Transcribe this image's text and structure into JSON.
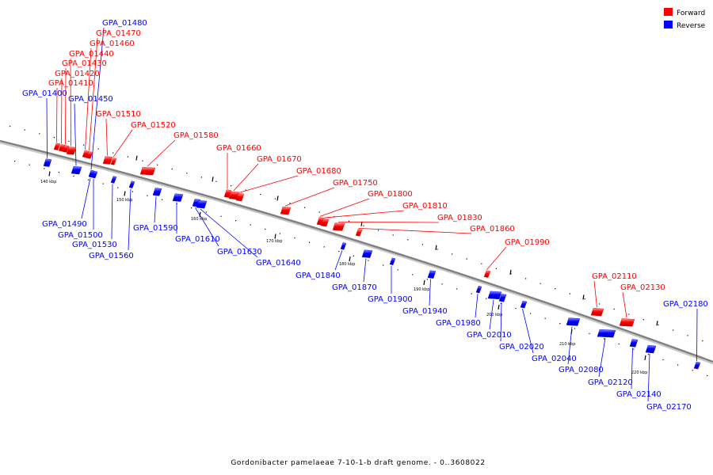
{
  "title": "Gordonibacter pamelaeae 7-10-1-b draft genome. - 0..3608022",
  "legend": [
    {
      "label": "Forward",
      "color": "#ff0000"
    },
    {
      "label": "Reverse",
      "color": "#0000ff"
    }
  ],
  "colors": {
    "forward": "#ff0000",
    "reverse": "#0000ff",
    "axis": "#808080"
  },
  "scale_ticks": [
    "140 kbp",
    "150 kbp",
    "160 kbp",
    "170 kbp",
    "180 kbp",
    "190 kbp",
    "200 kbp",
    "210 kbp",
    "220 kbp"
  ],
  "genes": [
    {
      "id": "GPA_01400",
      "strand": "reverse"
    },
    {
      "id": "GPA_01410",
      "strand": "forward"
    },
    {
      "id": "GPA_01420",
      "strand": "forward"
    },
    {
      "id": "GPA_01430",
      "strand": "forward"
    },
    {
      "id": "GPA_01440",
      "strand": "forward"
    },
    {
      "id": "GPA_01450",
      "strand": "reverse"
    },
    {
      "id": "GPA_01460",
      "strand": "forward"
    },
    {
      "id": "GPA_01470",
      "strand": "forward"
    },
    {
      "id": "GPA_01480",
      "strand": "reverse"
    },
    {
      "id": "GPA_01490",
      "strand": "reverse"
    },
    {
      "id": "GPA_01500",
      "strand": "reverse"
    },
    {
      "id": "GPA_01510",
      "strand": "forward"
    },
    {
      "id": "GPA_01520",
      "strand": "forward"
    },
    {
      "id": "GPA_01530",
      "strand": "reverse"
    },
    {
      "id": "GPA_01560",
      "strand": "reverse"
    },
    {
      "id": "GPA_01580",
      "strand": "forward"
    },
    {
      "id": "GPA_01590",
      "strand": "reverse"
    },
    {
      "id": "GPA_01610",
      "strand": "reverse"
    },
    {
      "id": "GPA_01630",
      "strand": "reverse"
    },
    {
      "id": "GPA_01640",
      "strand": "reverse"
    },
    {
      "id": "GPA_01660",
      "strand": "forward"
    },
    {
      "id": "GPA_01670",
      "strand": "forward"
    },
    {
      "id": "GPA_01680",
      "strand": "forward"
    },
    {
      "id": "GPA_01750",
      "strand": "forward"
    },
    {
      "id": "GPA_01800",
      "strand": "forward"
    },
    {
      "id": "GPA_01810",
      "strand": "forward"
    },
    {
      "id": "GPA_01830",
      "strand": "forward"
    },
    {
      "id": "GPA_01840",
      "strand": "reverse"
    },
    {
      "id": "GPA_01860",
      "strand": "forward"
    },
    {
      "id": "GPA_01870",
      "strand": "reverse"
    },
    {
      "id": "GPA_01900",
      "strand": "reverse"
    },
    {
      "id": "GPA_01940",
      "strand": "reverse"
    },
    {
      "id": "GPA_01980",
      "strand": "reverse"
    },
    {
      "id": "GPA_01990",
      "strand": "forward"
    },
    {
      "id": "GPA_02010",
      "strand": "reverse"
    },
    {
      "id": "GPA_02020",
      "strand": "reverse"
    },
    {
      "id": "GPA_02040",
      "strand": "reverse"
    },
    {
      "id": "GPA_02080",
      "strand": "reverse"
    },
    {
      "id": "GPA_02110",
      "strand": "forward"
    },
    {
      "id": "GPA_02120",
      "strand": "reverse"
    },
    {
      "id": "GPA_02130",
      "strand": "forward"
    },
    {
      "id": "GPA_02140",
      "strand": "reverse"
    },
    {
      "id": "GPA_02170",
      "strand": "reverse"
    },
    {
      "id": "GPA_02180",
      "strand": "reverse"
    }
  ]
}
